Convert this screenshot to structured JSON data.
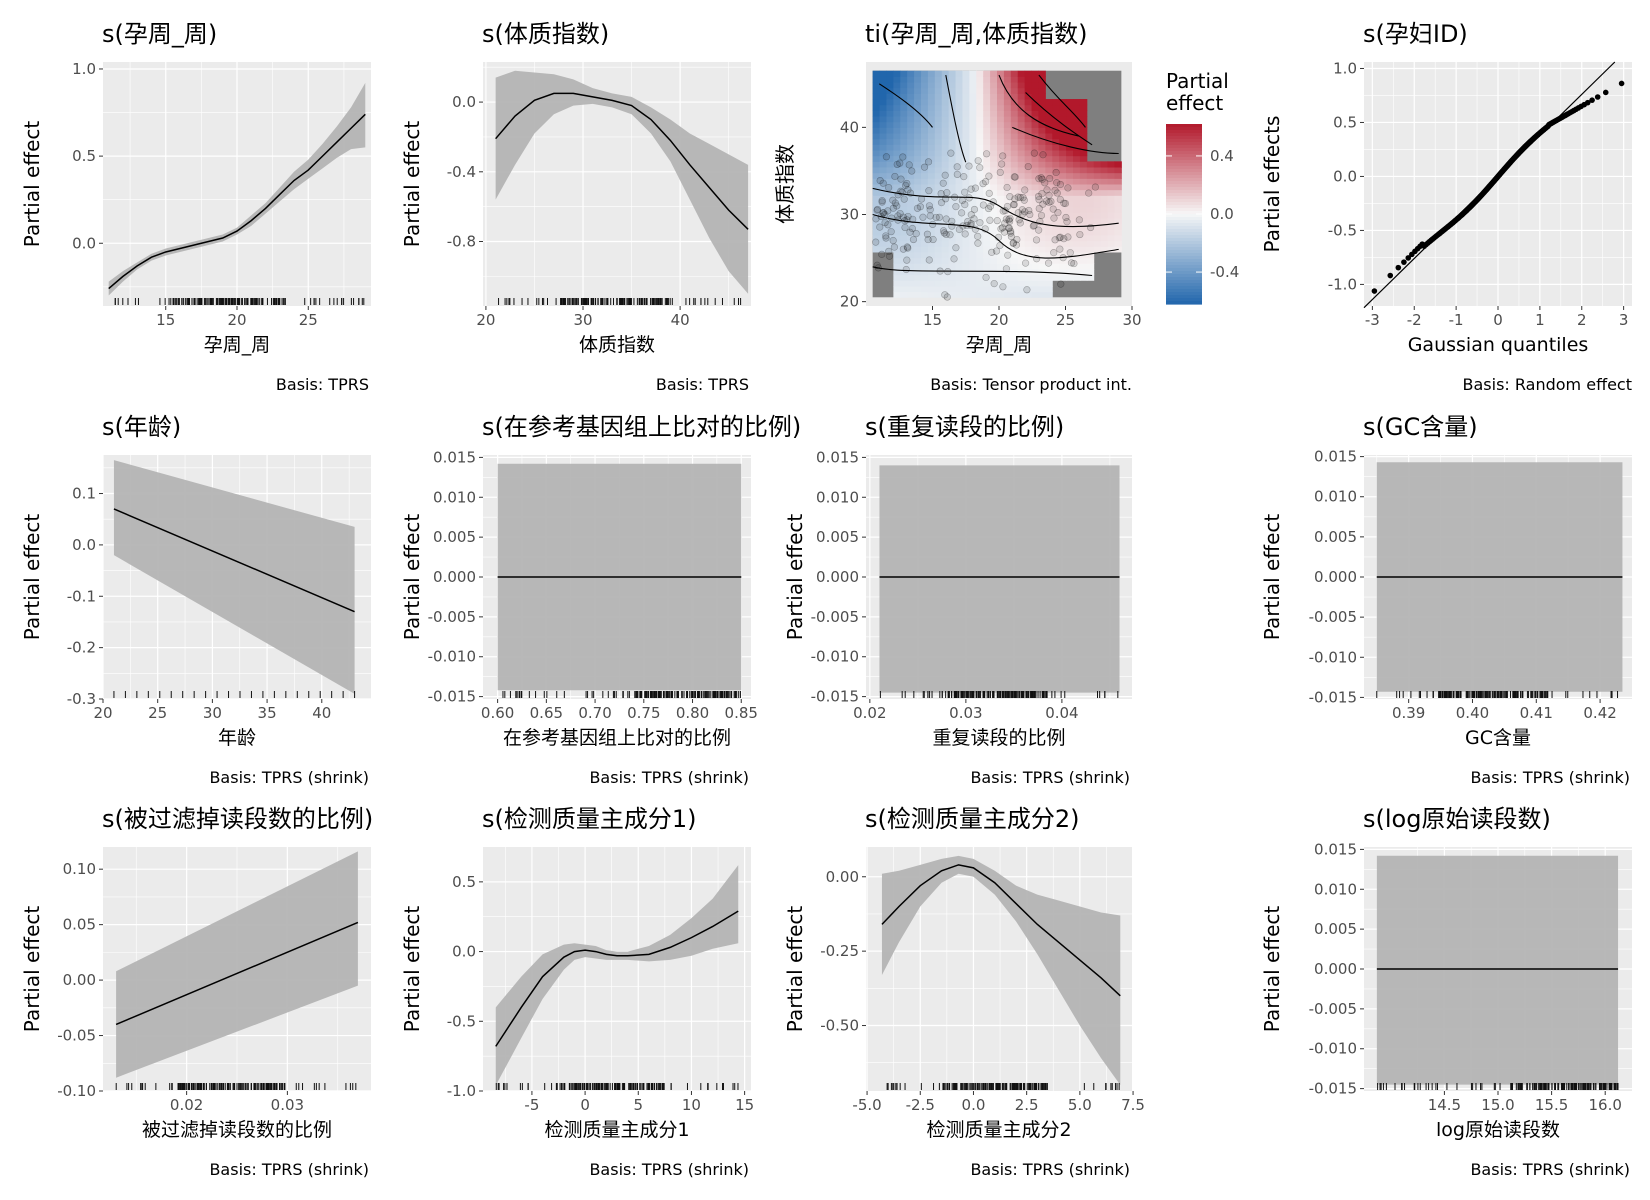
{
  "chart_data": [
    {
      "id": "p1",
      "type": "line",
      "title": "s(孕周_周)",
      "xlabel": "孕周_周",
      "ylabel": "Partial effect",
      "caption": "Basis: TPRS",
      "xlim": [
        10.6,
        29.4
      ],
      "ylim": [
        -0.36,
        1.04
      ],
      "xticks": [
        15,
        20,
        25
      ],
      "yticks": [
        0.0,
        0.5,
        1.0
      ],
      "ytick_labels": [
        "0.0",
        "0.5",
        "1.0"
      ],
      "x": [
        11,
        12,
        13,
        14,
        15,
        16,
        17,
        18,
        19,
        20,
        21,
        22,
        23,
        24,
        25,
        26,
        27,
        28,
        29
      ],
      "y": [
        -0.26,
        -0.19,
        -0.13,
        -0.08,
        -0.05,
        -0.03,
        -0.01,
        0.01,
        0.03,
        0.07,
        0.13,
        0.2,
        0.28,
        0.36,
        0.42,
        0.5,
        0.58,
        0.66,
        0.74
      ],
      "ci_lower": [
        -0.3,
        -0.22,
        -0.15,
        -0.1,
        -0.07,
        -0.05,
        -0.03,
        -0.01,
        0.01,
        0.05,
        0.1,
        0.17,
        0.24,
        0.31,
        0.37,
        0.43,
        0.49,
        0.54,
        0.55
      ],
      "ci_upper": [
        -0.22,
        -0.16,
        -0.11,
        -0.06,
        -0.03,
        -0.01,
        0.01,
        0.03,
        0.05,
        0.09,
        0.16,
        0.23,
        0.32,
        0.41,
        0.48,
        0.57,
        0.67,
        0.78,
        0.92
      ],
      "rug": "dense"
    },
    {
      "id": "p2",
      "type": "line",
      "title": "s(体质指数)",
      "xlabel": "体质指数",
      "ylabel": "Partial effect",
      "caption": "Basis: TPRS",
      "xlim": [
        19.7,
        47.3
      ],
      "ylim": [
        -1.17,
        0.23
      ],
      "xticks": [
        20,
        30,
        40
      ],
      "yticks": [
        -0.8,
        -0.4,
        0.0
      ],
      "ytick_labels": [
        "-0.8",
        "-0.4",
        "0.0"
      ],
      "x": [
        21,
        23,
        25,
        27,
        29,
        31,
        33,
        35,
        37,
        39,
        41,
        43,
        45,
        47
      ],
      "y": [
        -0.21,
        -0.08,
        0.01,
        0.05,
        0.05,
        0.03,
        0.01,
        -0.02,
        -0.1,
        -0.22,
        -0.36,
        -0.49,
        -0.62,
        -0.73
      ],
      "ci_lower": [
        -0.56,
        -0.36,
        -0.18,
        -0.07,
        -0.02,
        -0.01,
        -0.03,
        -0.07,
        -0.18,
        -0.34,
        -0.56,
        -0.78,
        -0.97,
        -1.1
      ],
      "ci_upper": [
        0.14,
        0.18,
        0.17,
        0.16,
        0.13,
        0.08,
        0.05,
        0.03,
        -0.03,
        -0.1,
        -0.18,
        -0.24,
        -0.3,
        -0.36
      ],
      "rug": "dense"
    },
    {
      "id": "p3",
      "type": "heatmap",
      "title": "ti(孕周_周,体质指数)",
      "xlabel": "孕周_周",
      "ylabel": "体质指数",
      "caption": "Basis: Tensor product int.",
      "legend_title": "Partial\neffect",
      "legend_ticks": [
        0.4,
        0.0,
        -0.4
      ],
      "legend_tick_labels": [
        "0.4",
        "0.0",
        "-0.4"
      ],
      "legend_range": [
        -0.62,
        0.62
      ],
      "xlim": [
        10,
        30
      ],
      "ylim": [
        19.5,
        47.5
      ],
      "xticks": [
        15,
        20,
        25,
        30
      ],
      "yticks": [
        20,
        30,
        40
      ],
      "points": "scatter of observations, dense around 10-25 x 25-35"
    },
    {
      "id": "p4",
      "type": "scatter",
      "title": "s(孕妇ID)",
      "xlabel": "Gaussian quantiles",
      "ylabel": "Partial effects",
      "caption": "Basis: Random effect",
      "xlim": [
        -3.2,
        3.2
      ],
      "ylim": [
        -1.2,
        1.06
      ],
      "xticks": [
        -3,
        -2,
        -1,
        0,
        1,
        2,
        3
      ],
      "yticks": [
        -1.0,
        -0.5,
        0.0,
        0.5,
        1.0
      ],
      "ytick_labels": [
        "-1.0",
        "-0.5",
        "0.0",
        "0.5",
        "1.0"
      ],
      "reference_line": {
        "slope": 0.38,
        "intercept": 0.0
      },
      "points": "QQ plot of random effects"
    },
    {
      "id": "p5",
      "type": "line",
      "title": "s(年龄)",
      "xlabel": "年龄",
      "ylabel": "Partial effect",
      "caption": "Basis: TPRS (shrink)",
      "xlim": [
        20,
        44.5
      ],
      "ylim": [
        -0.3,
        0.175
      ],
      "xticks": [
        20,
        25,
        30,
        35,
        40
      ],
      "yticks": [
        -0.3,
        -0.2,
        -0.1,
        0.0,
        0.1
      ],
      "ytick_labels": [
        "-0.3",
        "-0.2",
        "-0.1",
        "0.0",
        "0.1"
      ],
      "x": [
        21,
        43
      ],
      "y": [
        0.07,
        -0.13
      ],
      "ci_lower": [
        -0.02,
        -0.29
      ],
      "ci_upper": [
        0.165,
        0.035
      ],
      "rug": "sparse"
    },
    {
      "id": "p6",
      "type": "line",
      "title": "s(在参考基因组上比对的比例)",
      "xlabel": "在参考基因组上比对的比例",
      "ylabel": "Partial effect",
      "caption": "Basis: TPRS (shrink)",
      "xlim": [
        0.585,
        0.86
      ],
      "ylim": [
        -0.0153,
        0.0153
      ],
      "xticks": [
        0.6,
        0.65,
        0.7,
        0.75,
        0.8,
        0.85
      ],
      "xtick_labels": [
        "0.60",
        "0.65",
        "0.70",
        "0.75",
        "0.80",
        "0.85"
      ],
      "yticks": [
        -0.015,
        -0.01,
        -0.005,
        0.0,
        0.005,
        0.01,
        0.015
      ],
      "ytick_labels": [
        "-0.015",
        "-0.010",
        "-0.005",
        "0.000",
        "0.005",
        "0.010",
        "0.015"
      ],
      "x": [
        0.6,
        0.85
      ],
      "y": [
        0.0,
        0.0
      ],
      "ci_lower": [
        -0.0142,
        -0.0142
      ],
      "ci_upper": [
        0.0142,
        0.0142
      ],
      "rug": "right-dense"
    },
    {
      "id": "p7",
      "type": "line",
      "title": "s(重复读段的比例)",
      "xlabel": "重复读段的比例",
      "ylabel": "Partial effect",
      "caption": "Basis: TPRS (shrink)",
      "xlim": [
        0.0196,
        0.0473
      ],
      "ylim": [
        -0.0153,
        0.0153
      ],
      "xticks": [
        0.02,
        0.03,
        0.04
      ],
      "xtick_labels": [
        "0.02",
        "0.03",
        "0.04"
      ],
      "yticks": [
        -0.015,
        -0.01,
        -0.005,
        0.0,
        0.005,
        0.01,
        0.015
      ],
      "ytick_labels": [
        "-0.015",
        "-0.010",
        "-0.005",
        "0.000",
        "0.005",
        "0.010",
        "0.015"
      ],
      "x": [
        0.021,
        0.046
      ],
      "y": [
        0.0,
        0.0
      ],
      "ci_lower": [
        -0.0145,
        -0.0145
      ],
      "ci_upper": [
        0.014,
        0.014
      ],
      "rug": "dense"
    },
    {
      "id": "p8",
      "type": "line",
      "title": "s(GC含量)",
      "xlabel": "GC含量",
      "ylabel": "Partial effect",
      "caption": "Basis: TPRS (shrink)",
      "xlim": [
        0.383,
        0.425
      ],
      "ylim": [
        -0.0152,
        0.0152
      ],
      "xticks": [
        0.39,
        0.4,
        0.41,
        0.42
      ],
      "xtick_labels": [
        "0.39",
        "0.40",
        "0.41",
        "0.42"
      ],
      "yticks": [
        -0.015,
        -0.01,
        -0.005,
        0.0,
        0.005,
        0.01,
        0.015
      ],
      "ytick_labels": [
        "-0.015",
        "-0.010",
        "-0.005",
        "0.000",
        "0.005",
        "0.010",
        "0.015"
      ],
      "x": [
        0.385,
        0.4235
      ],
      "y": [
        0.0,
        0.0
      ],
      "ci_lower": [
        -0.0143,
        -0.0143
      ],
      "ci_upper": [
        0.0143,
        0.0143
      ],
      "rug": "dense"
    },
    {
      "id": "p9",
      "type": "line",
      "title": "s(被过滤掉读段数的比例)",
      "xlabel": "被过滤掉读段数的比例",
      "ylabel": "Partial effect",
      "caption": "Basis: TPRS (shrink)",
      "xlim": [
        0.0117,
        0.0383
      ],
      "ylim": [
        -0.1,
        0.12
      ],
      "xticks": [
        0.02,
        0.03
      ],
      "xtick_labels": [
        "0.02",
        "0.03"
      ],
      "yticks": [
        -0.1,
        -0.05,
        0.0,
        0.05,
        0.1
      ],
      "ytick_labels": [
        "-0.10",
        "-0.05",
        "0.00",
        "0.05",
        "0.10"
      ],
      "x": [
        0.013,
        0.037
      ],
      "y": [
        -0.04,
        0.052
      ],
      "ci_lower": [
        -0.088,
        -0.005
      ],
      "ci_upper": [
        0.008,
        0.116
      ],
      "rug": "dense"
    },
    {
      "id": "p10",
      "type": "line",
      "title": "s(检测质量主成分1)",
      "xlabel": "检测质量主成分1",
      "ylabel": "Partial effect",
      "caption": "Basis: TPRS (shrink)",
      "xlim": [
        -9.6,
        15.6
      ],
      "ylim": [
        -1.0,
        0.75
      ],
      "xticks": [
        -5,
        0,
        5,
        10,
        15
      ],
      "yticks": [
        -1.0,
        -0.5,
        0.0,
        0.5
      ],
      "ytick_labels": [
        "-1.0",
        "-0.5",
        "0.0",
        "0.5"
      ],
      "x": [
        -8.4,
        -6,
        -4,
        -2,
        -1,
        0,
        1,
        2,
        3,
        4,
        6,
        8,
        10,
        12,
        14.4
      ],
      "y": [
        -0.68,
        -0.4,
        -0.18,
        -0.04,
        0.0,
        0.01,
        0.0,
        -0.02,
        -0.03,
        -0.03,
        -0.02,
        0.03,
        0.1,
        0.18,
        0.29
      ],
      "ci_lower": [
        -0.96,
        -0.62,
        -0.34,
        -0.13,
        -0.06,
        -0.04,
        -0.05,
        -0.06,
        -0.06,
        -0.06,
        -0.07,
        -0.06,
        -0.03,
        0.02,
        0.06
      ],
      "ci_upper": [
        -0.4,
        -0.18,
        -0.02,
        0.05,
        0.06,
        0.05,
        0.04,
        0.01,
        0.0,
        0.0,
        0.04,
        0.12,
        0.24,
        0.38,
        0.62
      ],
      "rug": "dense"
    },
    {
      "id": "p11",
      "type": "line",
      "title": "s(检测质量主成分2)",
      "xlabel": "检测质量主成分2",
      "ylabel": "Partial effect",
      "caption": "Basis: TPRS (shrink)",
      "xlim": [
        -5.05,
        7.45
      ],
      "ylim": [
        -0.72,
        0.1
      ],
      "xticks": [
        -5.0,
        -2.5,
        0.0,
        2.5,
        5.0,
        7.5
      ],
      "xtick_labels": [
        "-5.0",
        "-2.5",
        "0.0",
        "2.5",
        "5.0",
        "7.5"
      ],
      "yticks": [
        -0.5,
        -0.25,
        0.0
      ],
      "ytick_labels": [
        "-0.50",
        "-0.25",
        "0.00"
      ],
      "x": [
        -4.3,
        -3.5,
        -2.5,
        -1.5,
        -0.7,
        0,
        1,
        2,
        3,
        4,
        5,
        6,
        6.9
      ],
      "y": [
        -0.16,
        -0.1,
        -0.03,
        0.02,
        0.04,
        0.03,
        -0.02,
        -0.09,
        -0.16,
        -0.22,
        -0.28,
        -0.34,
        -0.4
      ],
      "ci_lower": [
        -0.33,
        -0.22,
        -0.1,
        -0.02,
        0.01,
        0.0,
        -0.06,
        -0.15,
        -0.26,
        -0.38,
        -0.5,
        -0.61,
        -0.7
      ],
      "ci_upper": [
        0.01,
        0.02,
        0.04,
        0.06,
        0.07,
        0.06,
        0.02,
        -0.03,
        -0.06,
        -0.08,
        -0.1,
        -0.12,
        -0.13
      ],
      "rug": "dense"
    },
    {
      "id": "p12",
      "type": "line",
      "title": "s(log原始读段数)",
      "xlabel": "log原始读段数",
      "ylabel": "Partial effect",
      "caption": "Basis: TPRS (shrink)",
      "xlim": [
        13.75,
        16.25
      ],
      "ylim": [
        -0.0153,
        0.0153
      ],
      "xticks": [
        14.5,
        15.0,
        15.5,
        16.0
      ],
      "xtick_labels": [
        "14.5",
        "15.0",
        "15.5",
        "16.0"
      ],
      "yticks": [
        -0.015,
        -0.01,
        -0.005,
        0.0,
        0.005,
        0.01,
        0.015
      ],
      "ytick_labels": [
        "-0.015",
        "-0.010",
        "-0.005",
        "0.000",
        "0.005",
        "0.010",
        "0.015"
      ],
      "x": [
        13.87,
        16.12
      ],
      "y": [
        0.0,
        0.0
      ],
      "ci_lower": [
        -0.0145,
        -0.0145
      ],
      "ci_upper": [
        0.0142,
        0.0142
      ],
      "rug": "right-dense"
    }
  ],
  "colors": {
    "panel": "#ebebeb",
    "grid": "#ffffff",
    "ribbon": "#b4b4b4",
    "line": "#000000",
    "text": "#000000",
    "axis_text": "#4d4d4d",
    "heat_low": "#2166ac",
    "heat_mid": "#f7f7f7",
    "heat_high": "#b2182b",
    "missing": "#7f7f7f"
  }
}
